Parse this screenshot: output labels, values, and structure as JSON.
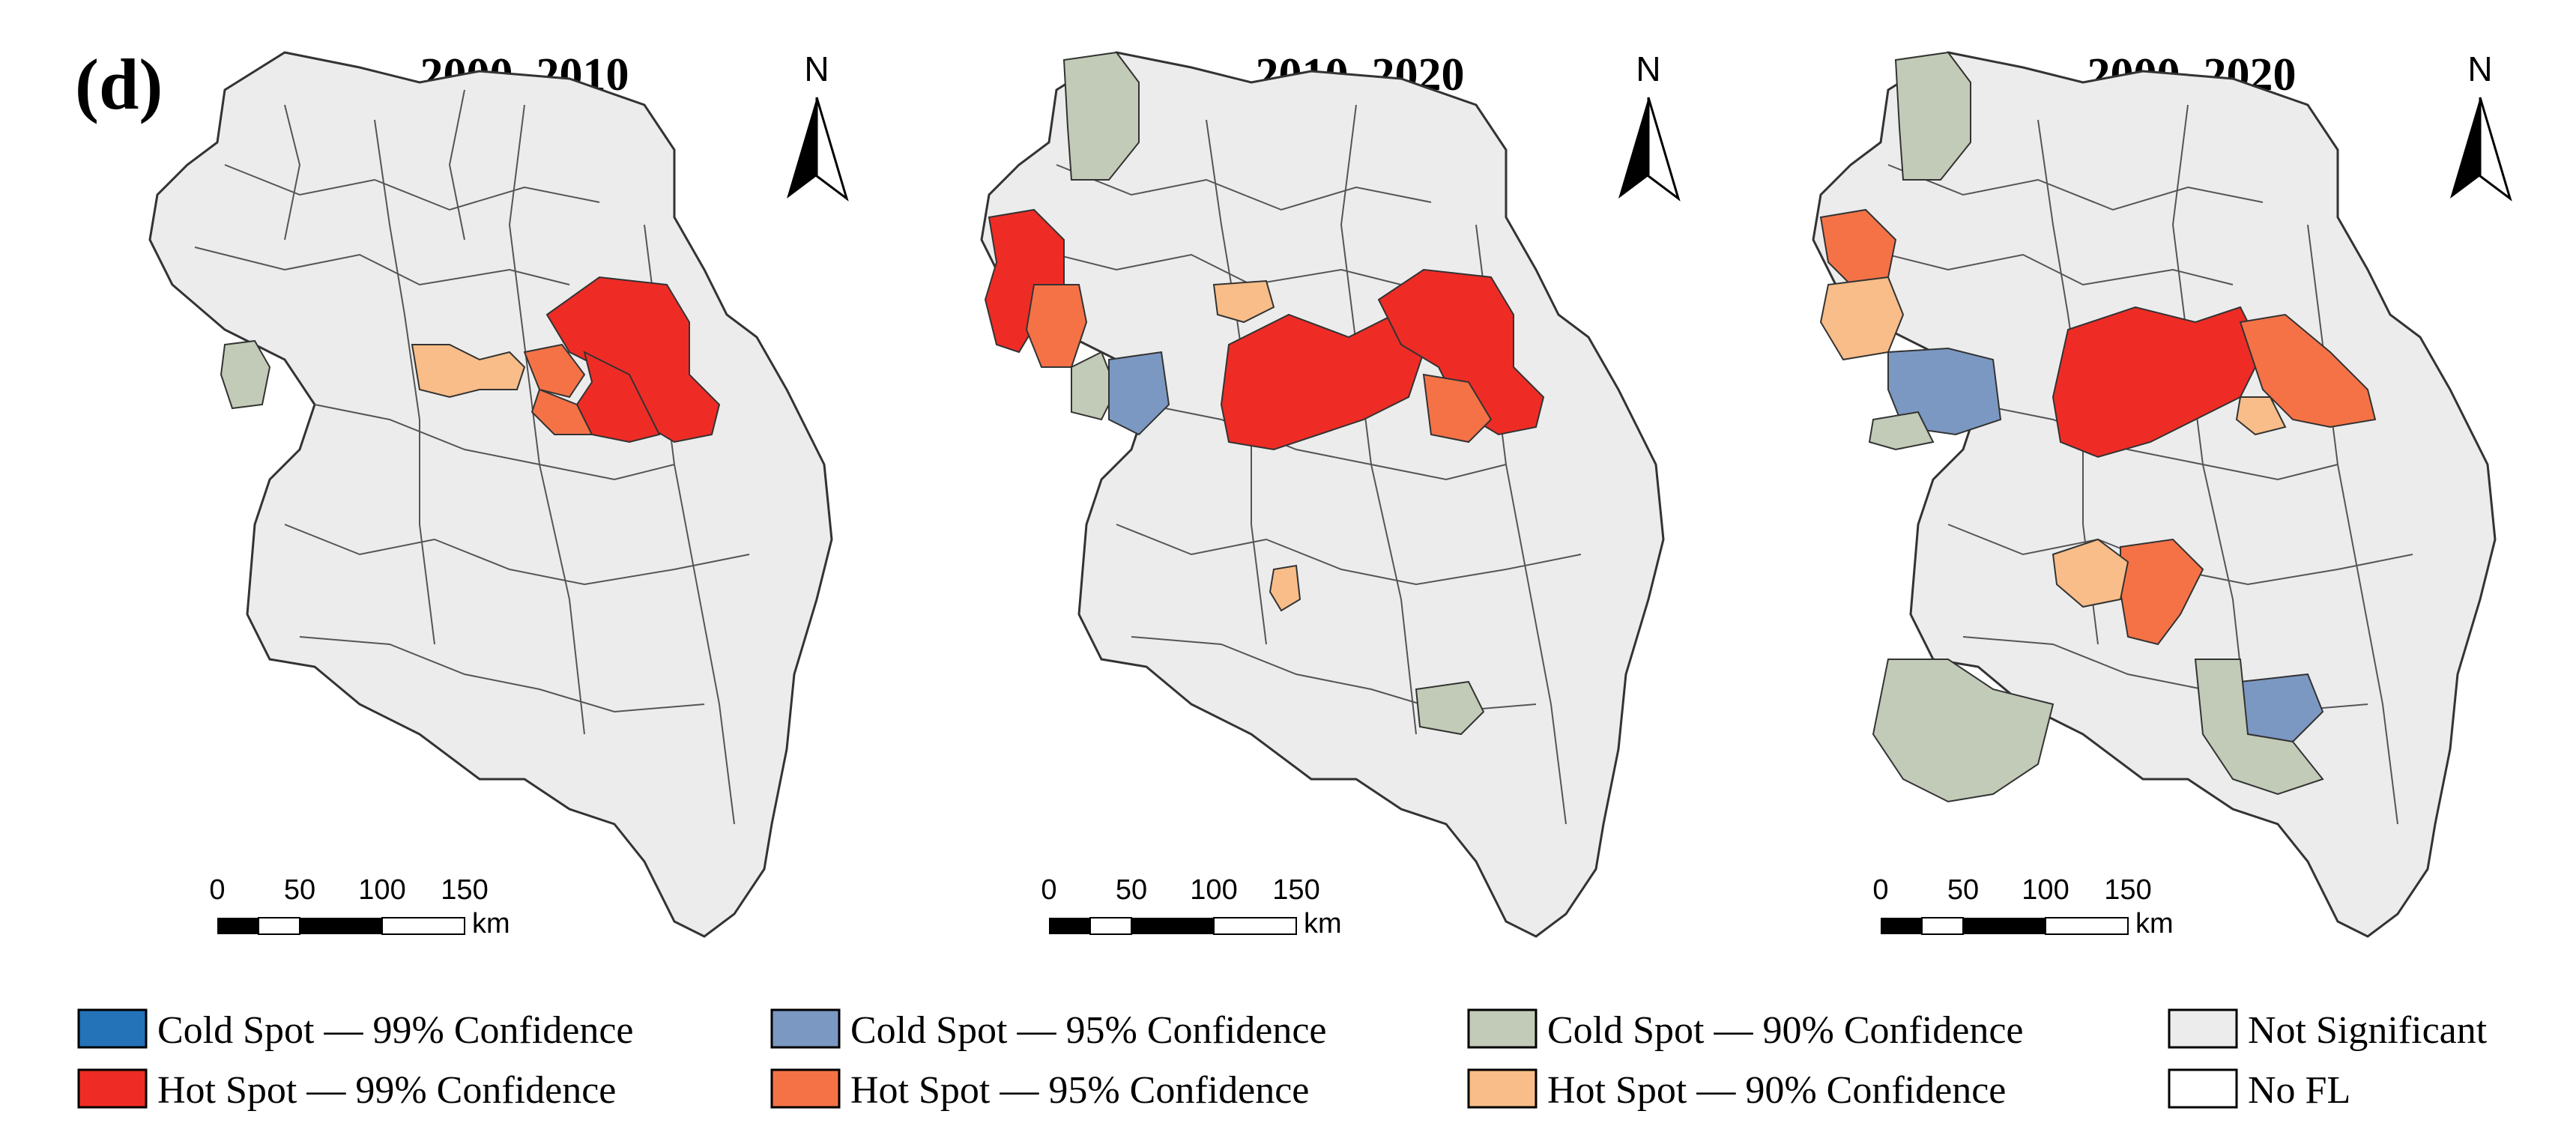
{
  "figure_label": "(d)",
  "colors": {
    "cold99": "#2472b8",
    "cold95": "#7b98c2",
    "cold90": "#c2cbb7",
    "not_sig": "#ececec",
    "hot99": "#ee2c25",
    "hot95": "#f57247",
    "hot90": "#f8bd88",
    "no_fl": "#ffffff",
    "border": "#333333"
  },
  "panels": [
    {
      "title": "2000–2010",
      "north": "N",
      "scale": {
        "ticks": [
          "0",
          "50",
          "100",
          "150"
        ],
        "unit": "km"
      },
      "hotspots": [
        {
          "region": "far-east-coastal",
          "class": "hot99"
        },
        {
          "region": "east-central",
          "class": "hot99"
        },
        {
          "region": "east-ring-a",
          "class": "hot95"
        },
        {
          "region": "east-ring-b",
          "class": "hot95"
        },
        {
          "region": "central-band",
          "class": "hot90"
        },
        {
          "region": "west-edge",
          "class": "cold90"
        }
      ]
    },
    {
      "title": "2010–2020",
      "north": "N",
      "scale": {
        "ticks": [
          "0",
          "50",
          "100",
          "150"
        ],
        "unit": "km"
      },
      "hotspots": [
        {
          "region": "north-tip",
          "class": "cold90"
        },
        {
          "region": "far-west",
          "class": "hot99"
        },
        {
          "region": "far-west-inner",
          "class": "hot95"
        },
        {
          "region": "west-south",
          "class": "cold90"
        },
        {
          "region": "west-central",
          "class": "cold95"
        },
        {
          "region": "north-central",
          "class": "hot90"
        },
        {
          "region": "central-east",
          "class": "hot99"
        },
        {
          "region": "far-east-coastal",
          "class": "hot99"
        },
        {
          "region": "east-ring",
          "class": "hot95"
        },
        {
          "region": "south-small",
          "class": "hot90"
        },
        {
          "region": "southeast-small",
          "class": "cold90"
        }
      ]
    },
    {
      "title": "2000–2020",
      "north": "N",
      "scale": {
        "ticks": [
          "0",
          "50",
          "100",
          "150"
        ],
        "unit": "km"
      },
      "hotspots": [
        {
          "region": "north-tip",
          "class": "cold90"
        },
        {
          "region": "far-west",
          "class": "hot95"
        },
        {
          "region": "far-west-inner",
          "class": "hot90"
        },
        {
          "region": "west-central",
          "class": "cold95"
        },
        {
          "region": "west-south",
          "class": "cold90"
        },
        {
          "region": "central-east",
          "class": "hot99"
        },
        {
          "region": "east-ring",
          "class": "hot95"
        },
        {
          "region": "east-ring-b",
          "class": "hot90"
        },
        {
          "region": "south-central",
          "class": "hot95"
        },
        {
          "region": "south-central-b",
          "class": "hot90"
        },
        {
          "region": "southwest",
          "class": "cold90"
        },
        {
          "region": "southeast",
          "class": "cold95"
        },
        {
          "region": "southeast-ring",
          "class": "cold90"
        }
      ]
    }
  ],
  "legend": [
    {
      "key": "cold99",
      "label": "Cold Spot — 99% Confidence"
    },
    {
      "key": "hot99",
      "label": "Hot Spot — 99% Confidence"
    },
    {
      "key": "cold95",
      "label": "Cold Spot — 95% Confidence"
    },
    {
      "key": "hot95",
      "label": "Hot Spot — 95% Confidence"
    },
    {
      "key": "cold90",
      "label": "Cold Spot — 90% Confidence"
    },
    {
      "key": "hot90",
      "label": "Hot Spot — 90% Confidence"
    },
    {
      "key": "not_sig",
      "label": "Not Significant"
    },
    {
      "key": "no_fl",
      "label": "No FL"
    }
  ]
}
